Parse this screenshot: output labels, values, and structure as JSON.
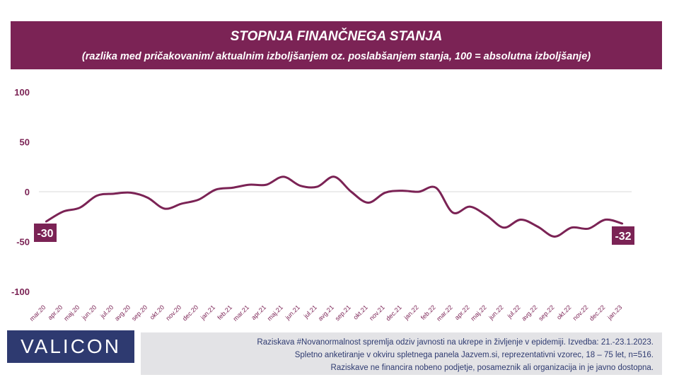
{
  "header": {
    "title": "STOPNJA FINANČNEGA STANJA",
    "subtitle": "(razlika med pričakovanim/ aktualnim izboljšanjem oz. poslabšanjem stanja, 100 = absolutna izboljšanje)"
  },
  "logo": {
    "text": "VALICON"
  },
  "footer": {
    "line1": "Raziskava #Novanormalnost spremlja odziv javnosti na ukrepe in življenje v epidemiji. Izvedba: 21.-23.1.2023.",
    "line2": "Spletno anketiranje v okviru spletnega panela Jazvem.si, reprezentativni vzorec, 18 – 75 let, n=516.",
    "line3": "Raziskave ne financira nobeno podjetje, posameznik ali organizacija in je javno dostopna."
  },
  "colors": {
    "brand": "#7b2355",
    "logo_bg": "#2e3a70",
    "footer_bg": "#e3e3e6",
    "axis_text": "#7b2355"
  },
  "chart_data": {
    "type": "line",
    "x": [
      "mar.20",
      "apr.20",
      "maj.20",
      "jun.20",
      "jul.20",
      "avg.20",
      "sep.20",
      "okt.20",
      "nov.20",
      "dec.20",
      "jan.21",
      "feb.21",
      "mar.21",
      "apr.21",
      "maj.21",
      "jun.21",
      "jul.21",
      "avg.21",
      "sep.21",
      "okt.21",
      "nov.21",
      "dec.21",
      "jan.22",
      "feb.22",
      "mar.22",
      "apr.22",
      "maj.22",
      "jun.22",
      "jul.22",
      "avg.22",
      "sep.22",
      "okt.22",
      "nov.22",
      "dec.22",
      "jan.23"
    ],
    "series": [
      {
        "values": [
          -30,
          -20,
          -16,
          -4,
          -2,
          -1,
          -6,
          -17,
          -12,
          -8,
          2,
          4,
          7,
          7,
          15,
          6,
          5,
          15,
          0,
          -11,
          -1,
          1,
          0,
          4,
          -21,
          -15,
          -24,
          -36,
          -28,
          -35,
          -45,
          -36,
          -37,
          -28,
          -32
        ]
      }
    ],
    "ylim": [
      -100,
      100
    ],
    "yticks": [
      100,
      50,
      0,
      -50,
      -100
    ],
    "labels": {
      "first": "-30",
      "last": "-32"
    },
    "grid": false,
    "line_color": "#7b2355"
  }
}
